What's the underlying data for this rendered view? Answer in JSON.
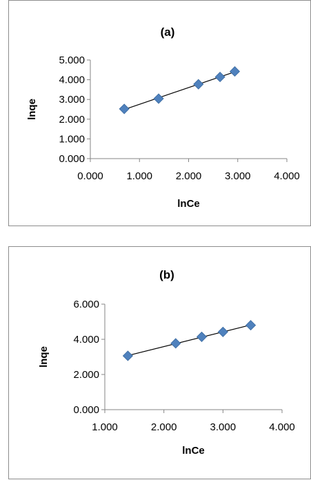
{
  "chart_data": [
    {
      "type": "scatter",
      "title": "(a)",
      "xlabel": "lnCe",
      "ylabel": "lnqe",
      "xlim": [
        0,
        4
      ],
      "ylim": [
        0,
        5
      ],
      "x_ticks": [
        "0.000",
        "1.000",
        "2.000",
        "3.000",
        "4.000"
      ],
      "y_ticks": [
        "0.000",
        "1.000",
        "2.000",
        "3.000",
        "4.000",
        "5.000"
      ],
      "grid": false,
      "marker_color": "#4f81bd",
      "trendline": true,
      "series": [
        {
          "x": [
            0.69,
            1.39,
            2.2,
            2.64,
            2.94
          ],
          "y": [
            2.52,
            3.04,
            3.77,
            4.14,
            4.42
          ]
        }
      ]
    },
    {
      "type": "scatter",
      "title": "(b)",
      "xlabel": "lnCe",
      "ylabel": "lnqe",
      "xlim": [
        1,
        4
      ],
      "ylim": [
        0,
        6
      ],
      "x_ticks": [
        "1.000",
        "2.000",
        "3.000",
        "4.000"
      ],
      "y_ticks": [
        "0.000",
        "2.000",
        "4.000",
        "6.000"
      ],
      "grid": false,
      "marker_color": "#4f81bd",
      "trendline": true,
      "series": [
        {
          "x": [
            1.39,
            2.2,
            2.64,
            3.0,
            3.47
          ],
          "y": [
            3.06,
            3.77,
            4.14,
            4.42,
            4.8
          ]
        }
      ]
    }
  ]
}
